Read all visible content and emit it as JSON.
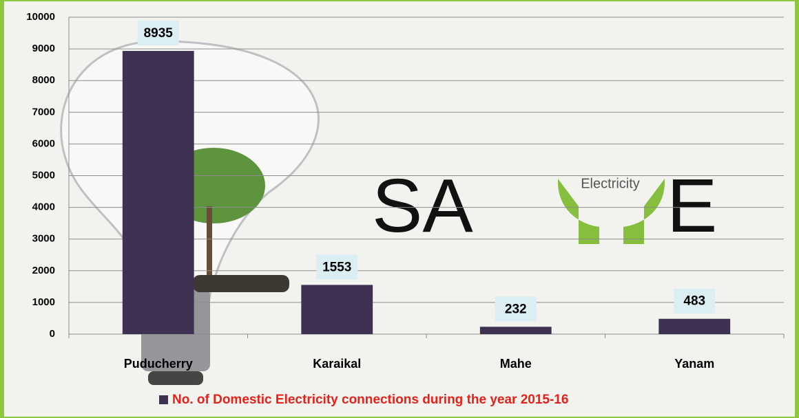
{
  "chart_data": {
    "type": "bar",
    "categories": [
      "Puducherry",
      "Karaikal",
      "Mahe",
      "Yanam"
    ],
    "series": [
      {
        "name": "No. of Domestic Electricity connections during the year 2015-16",
        "color": "#3f3151",
        "values": [
          8935,
          1553,
          232,
          483
        ]
      }
    ],
    "ylim": [
      0,
      10000
    ],
    "yticks": [
      0,
      1000,
      2000,
      3000,
      4000,
      5000,
      6000,
      7000,
      8000,
      9000,
      10000
    ],
    "grid": true,
    "legend": "bottom",
    "annotations": [
      "SA",
      "Electricity",
      "E"
    ]
  }
}
